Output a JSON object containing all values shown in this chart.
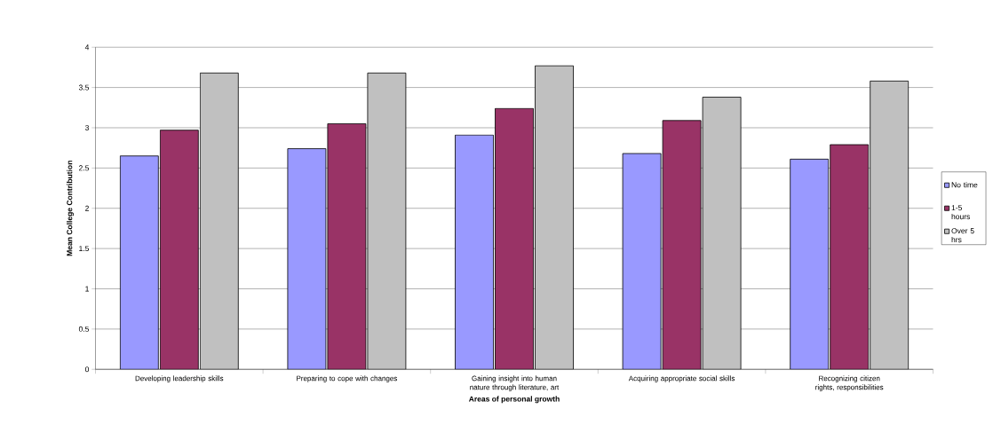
{
  "chart_data": {
    "type": "bar",
    "xlabel": "Areas of personal growth",
    "ylabel": "Mean College Contribution",
    "categories": [
      "Developing leadership skills",
      "Preparing to cope with changes",
      "Gaining insight into human nature through literature, art",
      "Acquiring appropriate social skills",
      "Recognizing citizen rights, responsibilities"
    ],
    "series": [
      {
        "name": "No time",
        "color": "#9999ff",
        "values": [
          2.65,
          2.74,
          2.91,
          2.68,
          2.61
        ]
      },
      {
        "name": "1-5 hours",
        "color": "#993366",
        "values": [
          2.97,
          3.05,
          3.24,
          3.09,
          2.79
        ]
      },
      {
        "name": "Over 5 hrs",
        "color": "#c0c0c0",
        "values": [
          3.68,
          3.68,
          3.77,
          3.38,
          3.58
        ]
      }
    ],
    "ylim": [
      0,
      4
    ],
    "yticks": [
      0,
      0.5,
      1,
      1.5,
      2,
      2.5,
      3,
      3.5,
      4
    ],
    "grid": "y",
    "legend": "right"
  }
}
